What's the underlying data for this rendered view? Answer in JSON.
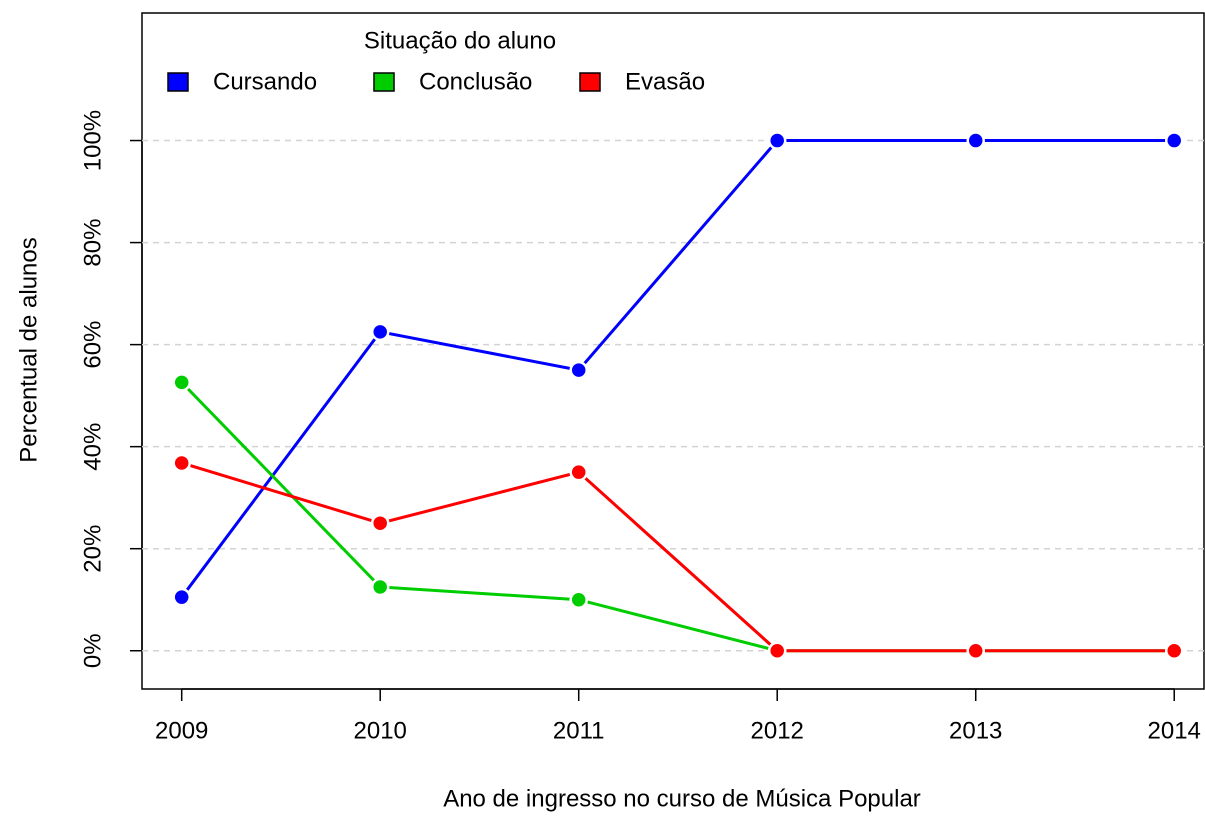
{
  "chart_data": {
    "type": "line",
    "x_label": "Ano de ingresso no curso de Música Popular",
    "y_label": "Percentual de alunos",
    "legend_title": "Situação do aluno",
    "legend_position": "topleft",
    "grid": true,
    "x": [
      2009,
      2010,
      2011,
      2012,
      2013,
      2014
    ],
    "xlim": [
      2008.8,
      2014.15
    ],
    "xticks": [
      2009,
      2010,
      2011,
      2012,
      2013,
      2014
    ],
    "ylim": [
      -7.5,
      125
    ],
    "yticks": [
      {
        "value": 0,
        "label": "0%"
      },
      {
        "value": 20,
        "label": "20%"
      },
      {
        "value": 40,
        "label": "40%"
      },
      {
        "value": 60,
        "label": "60%"
      },
      {
        "value": 80,
        "label": "80%"
      },
      {
        "value": 100,
        "label": "100%"
      }
    ],
    "series": [
      {
        "name": "Cursando",
        "color": "#0000ff",
        "values": [
          10.5,
          62.5,
          55,
          100,
          100,
          100
        ]
      },
      {
        "name": "Conclusão",
        "color": "#00cd00",
        "values": [
          52.6,
          12.5,
          10,
          0,
          0,
          0
        ]
      },
      {
        "name": "Evasão",
        "color": "#ff0000",
        "values": [
          36.8,
          25,
          35,
          0,
          0,
          0
        ]
      }
    ]
  }
}
